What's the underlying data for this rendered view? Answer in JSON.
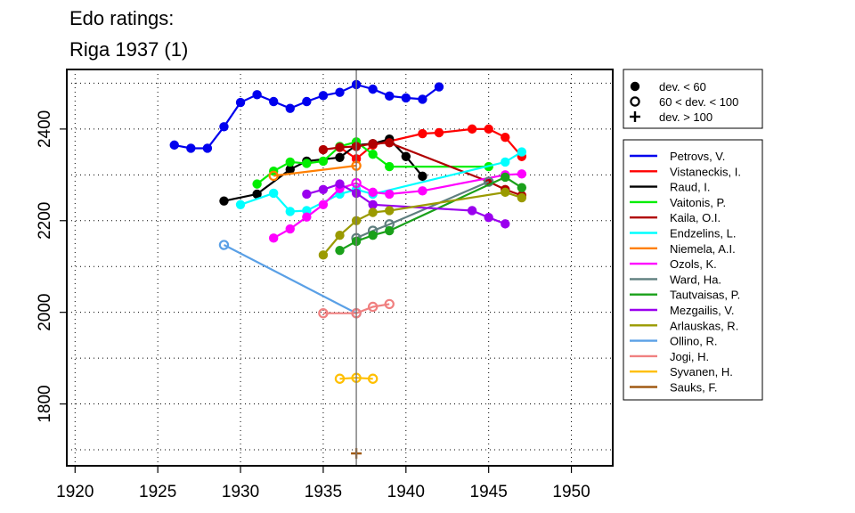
{
  "chart_data": {
    "type": "line",
    "title": "Edo ratings:",
    "subtitle": "Riga 1937 (1)",
    "xlabel": "",
    "ylabel": "",
    "xlim": [
      1919.5,
      1952.5
    ],
    "ylim": [
      1665,
      2530
    ],
    "xticks": [
      1920,
      1925,
      1930,
      1935,
      1940,
      1945,
      1950
    ],
    "yticks": [
      1800,
      2000,
      2200,
      2400
    ],
    "grid": true,
    "event_year": 1937,
    "dev_legend": [
      {
        "symbol": "filled",
        "label": "dev. < 60"
      },
      {
        "symbol": "open",
        "label": "60 < dev. < 100"
      },
      {
        "symbol": "plus",
        "label": "dev. > 100"
      }
    ],
    "series": [
      {
        "name": "Petrovs, V.",
        "color": "#0000ee",
        "points": [
          [
            1926,
            2365,
            "f"
          ],
          [
            1927,
            2358,
            "f"
          ],
          [
            1928,
            2358,
            "f"
          ],
          [
            1929,
            2405,
            "f"
          ],
          [
            1930,
            2458,
            "f"
          ],
          [
            1931,
            2475,
            "f"
          ],
          [
            1932,
            2460,
            "f"
          ],
          [
            1933,
            2445,
            "f"
          ],
          [
            1934,
            2460,
            "f"
          ],
          [
            1935,
            2473,
            "f"
          ],
          [
            1936,
            2480,
            "f"
          ],
          [
            1937,
            2497,
            "f"
          ],
          [
            1938,
            2487,
            "f"
          ],
          [
            1939,
            2472,
            "f"
          ],
          [
            1940,
            2468,
            "f"
          ],
          [
            1941,
            2465,
            "f"
          ],
          [
            1942,
            2492,
            "f"
          ]
        ]
      },
      {
        "name": "Vistaneckis, I.",
        "color": "#ff0000",
        "points": [
          [
            1936,
            2360,
            "f"
          ],
          [
            1937,
            2335,
            "f"
          ],
          [
            1938,
            2365,
            "f"
          ],
          [
            1941,
            2390,
            "f"
          ],
          [
            1942,
            2392,
            "f"
          ],
          [
            1944,
            2400,
            "f"
          ],
          [
            1945,
            2400,
            "f"
          ],
          [
            1946,
            2382,
            "f"
          ],
          [
            1947,
            2340,
            "f"
          ]
        ]
      },
      {
        "name": "Raud, I.",
        "color": "#000000",
        "points": [
          [
            1929,
            2243,
            "f"
          ],
          [
            1931,
            2258,
            "f"
          ],
          [
            1933,
            2312,
            "f"
          ],
          [
            1934,
            2330,
            "f"
          ],
          [
            1936,
            2338,
            "f"
          ],
          [
            1937,
            2365,
            "f"
          ],
          [
            1938,
            2368,
            "f"
          ],
          [
            1939,
            2378,
            "f"
          ],
          [
            1940,
            2340,
            "f"
          ],
          [
            1941,
            2297,
            "f"
          ]
        ]
      },
      {
        "name": "Vaitonis, P.",
        "color": "#00ee00",
        "points": [
          [
            1931,
            2280,
            "f"
          ],
          [
            1932,
            2308,
            "f"
          ],
          [
            1933,
            2328,
            "f"
          ],
          [
            1934,
            2325,
            "f"
          ],
          [
            1935,
            2330,
            "f"
          ],
          [
            1936,
            2362,
            "f"
          ],
          [
            1937,
            2372,
            "f"
          ],
          [
            1938,
            2345,
            "f"
          ],
          [
            1939,
            2318,
            "f"
          ],
          [
            1945,
            2318,
            "f"
          ]
        ]
      },
      {
        "name": "Kaila, O.I.",
        "color": "#b00000",
        "points": [
          [
            1935,
            2355,
            "f"
          ],
          [
            1936,
            2360,
            "f"
          ],
          [
            1937,
            2362,
            "f"
          ],
          [
            1938,
            2368,
            "f"
          ],
          [
            1939,
            2370,
            "f"
          ],
          [
            1945,
            2285,
            "f"
          ],
          [
            1946,
            2268,
            "f"
          ],
          [
            1947,
            2255,
            "f"
          ]
        ]
      },
      {
        "name": "Endzelins, L.",
        "color": "#00ffff",
        "points": [
          [
            1930,
            2235,
            "f"
          ],
          [
            1932,
            2260,
            "f"
          ],
          [
            1933,
            2220,
            "f"
          ],
          [
            1934,
            2222,
            "f"
          ],
          [
            1936,
            2258,
            "f"
          ],
          [
            1937,
            2268,
            "f"
          ],
          [
            1938,
            2258,
            "f"
          ],
          [
            1946,
            2328,
            "f"
          ],
          [
            1947,
            2350,
            "f"
          ]
        ]
      },
      {
        "name": "Niemela, A.I.",
        "color": "#ff7f00",
        "points": [
          [
            1932,
            2298,
            "o"
          ],
          [
            1937,
            2320,
            "o"
          ]
        ]
      },
      {
        "name": "Ozols, K.",
        "color": "#ff00ff",
        "points": [
          [
            1932,
            2162,
            "f"
          ],
          [
            1933,
            2182,
            "f"
          ],
          [
            1934,
            2208,
            "f"
          ],
          [
            1935,
            2235,
            "f"
          ],
          [
            1936,
            2270,
            "f"
          ],
          [
            1937,
            2282,
            "o"
          ],
          [
            1938,
            2262,
            "f"
          ],
          [
            1939,
            2258,
            "f"
          ],
          [
            1941,
            2265,
            "f"
          ],
          [
            1946,
            2300,
            "f"
          ],
          [
            1947,
            2302,
            "f"
          ]
        ]
      },
      {
        "name": "Ward, Ha.",
        "color": "#5f7f7f",
        "points": [
          [
            1937,
            2162,
            "o"
          ],
          [
            1938,
            2178,
            "o"
          ],
          [
            1939,
            2192,
            "o"
          ],
          [
            1945,
            2285,
            "o"
          ]
        ]
      },
      {
        "name": "Tautvaisas, P.",
        "color": "#1aa01a",
        "points": [
          [
            1936,
            2135,
            "f"
          ],
          [
            1937,
            2155,
            "f"
          ],
          [
            1938,
            2168,
            "f"
          ],
          [
            1939,
            2178,
            "f"
          ],
          [
            1946,
            2295,
            "f"
          ],
          [
            1947,
            2272,
            "f"
          ]
        ]
      },
      {
        "name": "Mezgailis, V.",
        "color": "#9a00ee",
        "points": [
          [
            1934,
            2258,
            "f"
          ],
          [
            1935,
            2268,
            "f"
          ],
          [
            1936,
            2280,
            "f"
          ],
          [
            1937,
            2260,
            "f"
          ],
          [
            1938,
            2235,
            "f"
          ],
          [
            1944,
            2222,
            "f"
          ],
          [
            1945,
            2207,
            "f"
          ],
          [
            1946,
            2193,
            "f"
          ]
        ]
      },
      {
        "name": "Arlauskas, R.",
        "color": "#9a9a00",
        "points": [
          [
            1935,
            2125,
            "f"
          ],
          [
            1936,
            2168,
            "f"
          ],
          [
            1937,
            2200,
            "f"
          ],
          [
            1938,
            2218,
            "f"
          ],
          [
            1939,
            2222,
            "f"
          ],
          [
            1946,
            2262,
            "f"
          ],
          [
            1947,
            2250,
            "f"
          ]
        ]
      },
      {
        "name": "Ollino, R.",
        "color": "#5aa0e6",
        "points": [
          [
            1929,
            2147,
            "o"
          ],
          [
            1937,
            1998,
            "o"
          ]
        ]
      },
      {
        "name": "Jogi, H.",
        "color": "#f08080",
        "points": [
          [
            1935,
            1998,
            "o"
          ],
          [
            1937,
            1998,
            "o"
          ],
          [
            1938,
            2012,
            "o"
          ],
          [
            1939,
            2018,
            "o"
          ]
        ]
      },
      {
        "name": "Syvanen, H.",
        "color": "#ffbf00",
        "points": [
          [
            1936,
            1855,
            "o"
          ],
          [
            1937,
            1857,
            "o"
          ],
          [
            1938,
            1855,
            "o"
          ]
        ]
      },
      {
        "name": "Sauks, F.",
        "color": "#a05a14",
        "points": [
          [
            1937,
            1692,
            "p"
          ]
        ]
      }
    ]
  }
}
